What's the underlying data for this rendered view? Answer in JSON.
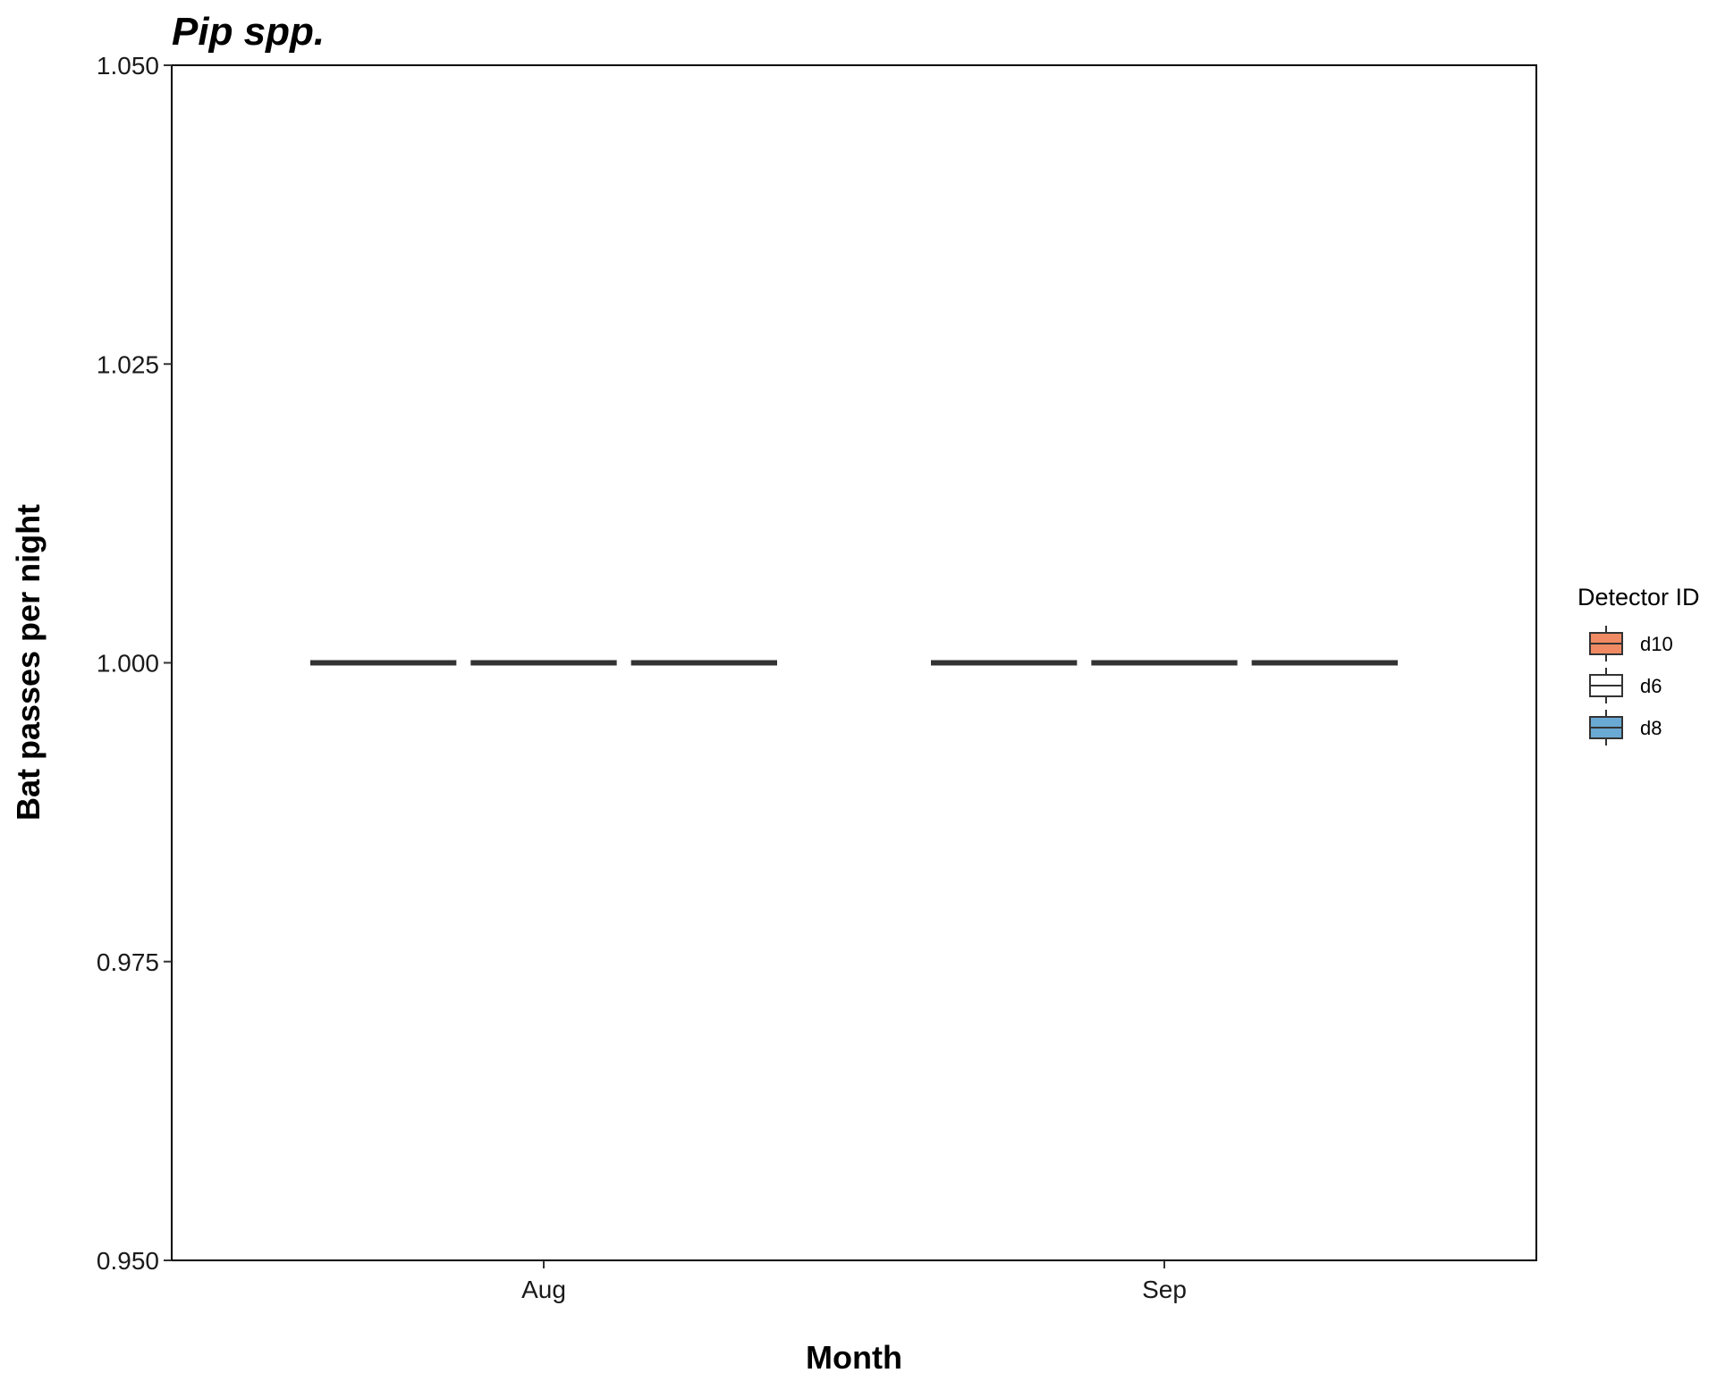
{
  "chart_data": {
    "type": "boxplot",
    "title": "Pip spp.",
    "xlabel": "Month",
    "ylabel": "Bat passes per night",
    "categories": [
      "Aug",
      "Sep"
    ],
    "ylim": [
      0.95,
      1.05
    ],
    "yticks": [
      0.95,
      0.975,
      1.0,
      1.025,
      1.05
    ],
    "ytick_labels": [
      "0.950",
      "0.975",
      "1.000",
      "1.025",
      "1.050"
    ],
    "grid": false,
    "legend": {
      "title": "Detector ID",
      "position": "right"
    },
    "series": [
      {
        "name": "d10",
        "color": "#f08a63",
        "values": [
          {
            "category": "Aug",
            "min": 1.0,
            "q1": 1.0,
            "median": 1.0,
            "q3": 1.0,
            "max": 1.0
          },
          {
            "category": "Sep",
            "min": 1.0,
            "q1": 1.0,
            "median": 1.0,
            "q3": 1.0,
            "max": 1.0
          }
        ]
      },
      {
        "name": "d6",
        "color": "#ffffff",
        "values": [
          {
            "category": "Aug",
            "min": 1.0,
            "q1": 1.0,
            "median": 1.0,
            "q3": 1.0,
            "max": 1.0
          },
          {
            "category": "Sep",
            "min": 1.0,
            "q1": 1.0,
            "median": 1.0,
            "q3": 1.0,
            "max": 1.0
          }
        ]
      },
      {
        "name": "d8",
        "color": "#6aa9d3",
        "values": [
          {
            "category": "Aug",
            "min": 1.0,
            "q1": 1.0,
            "median": 1.0,
            "q3": 1.0,
            "max": 1.0
          },
          {
            "category": "Sep",
            "min": 1.0,
            "q1": 1.0,
            "median": 1.0,
            "q3": 1.0,
            "max": 1.0
          }
        ]
      }
    ]
  }
}
